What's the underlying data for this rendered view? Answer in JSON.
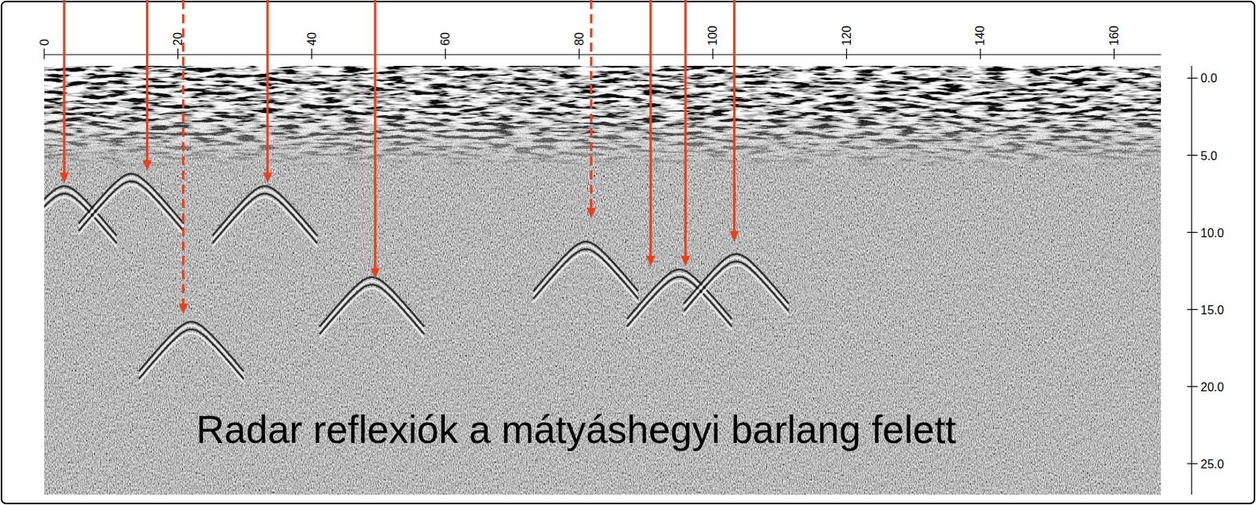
{
  "chart_data": {
    "type": "radargram",
    "title": "Radar reflexiók a mátyáshegyi barlang felett",
    "xlim": [
      0,
      167
    ],
    "xticks": [
      0,
      20,
      40,
      60,
      80,
      100,
      120,
      140,
      160
    ],
    "ylim": [
      -0.8,
      27
    ],
    "yticks": [
      {
        "value": 0,
        "label": "0.0"
      },
      {
        "value": 5,
        "label": "5.0"
      },
      {
        "value": 10,
        "label": "10.0"
      },
      {
        "value": 15,
        "label": "15.0"
      },
      {
        "value": 20,
        "label": "20.0"
      },
      {
        "value": 25,
        "label": "25.0"
      }
    ],
    "grid": false,
    "color": "#e8401c",
    "arrows": [
      {
        "x": 3.0,
        "depth": 6.8,
        "line_style": "solid"
      },
      {
        "x": 15.4,
        "depth": 6.0,
        "line_style": "solid"
      },
      {
        "x": 20.8,
        "depth": 15.3,
        "line_style": "dashed"
      },
      {
        "x": 33.4,
        "depth": 6.8,
        "line_style": "solid"
      },
      {
        "x": 49.5,
        "depth": 13.0,
        "line_style": "solid"
      },
      {
        "x": 81.8,
        "depth": 9.1,
        "line_style": "dashed"
      },
      {
        "x": 90.7,
        "depth": 12.2,
        "line_style": "solid"
      },
      {
        "x": 95.9,
        "depth": 12.2,
        "line_style": "solid"
      },
      {
        "x": 103.2,
        "depth": 10.6,
        "line_style": "solid"
      }
    ],
    "reflections": [
      {
        "x": 3.0,
        "depth": 7.0
      },
      {
        "x": 13.0,
        "depth": 6.2
      },
      {
        "x": 33.0,
        "depth": 7.0
      },
      {
        "x": 49.0,
        "depth": 12.9
      },
      {
        "x": 22.0,
        "depth": 15.8
      },
      {
        "x": 81.0,
        "depth": 10.6
      },
      {
        "x": 95.0,
        "depth": 12.4
      },
      {
        "x": 103.5,
        "depth": 11.4
      }
    ]
  }
}
